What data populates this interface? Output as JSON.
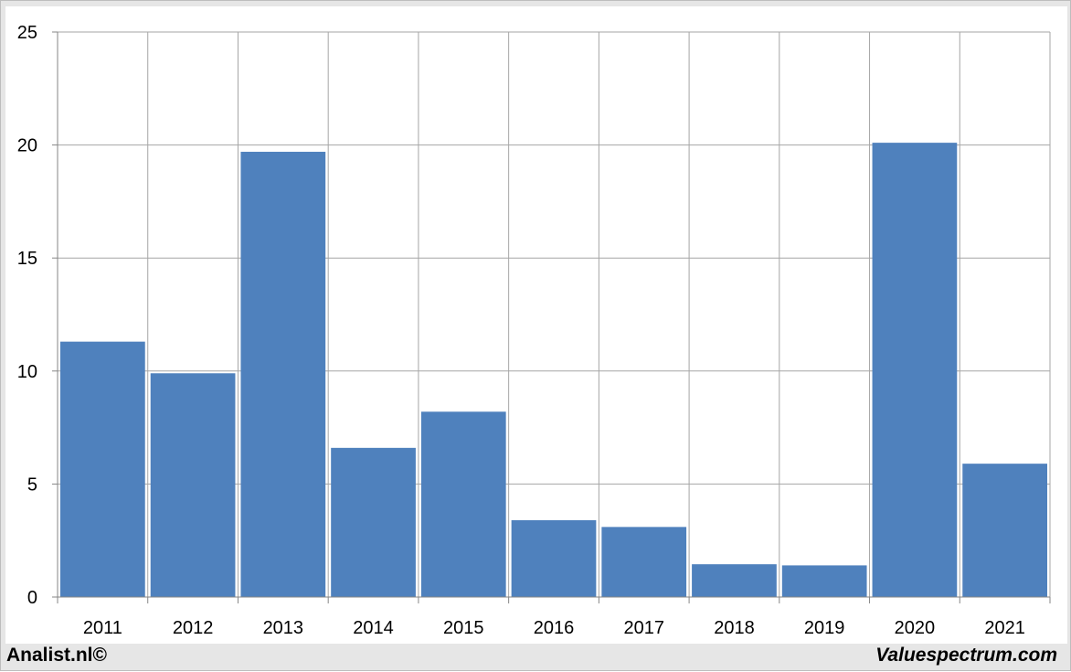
{
  "chart_data": {
    "type": "bar",
    "categories": [
      "2011",
      "2012",
      "2013",
      "2014",
      "2015",
      "2016",
      "2017",
      "2018",
      "2019",
      "2020",
      "2021"
    ],
    "values": [
      11.3,
      9.9,
      19.7,
      6.6,
      8.2,
      3.4,
      3.1,
      1.45,
      1.4,
      20.1,
      5.9
    ],
    "ylim": [
      0,
      25
    ],
    "yticks": [
      0,
      5,
      10,
      15,
      20,
      25
    ],
    "grid": true,
    "bar_color": "#4f81bd",
    "title": "",
    "xlabel": "",
    "ylabel": ""
  },
  "footer": {
    "left": "Analist.nl©",
    "right": "Valuespectrum.com"
  }
}
